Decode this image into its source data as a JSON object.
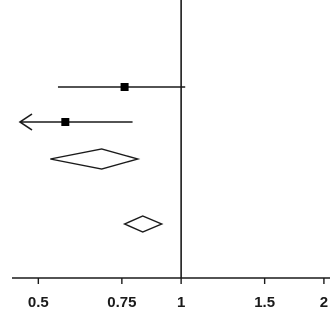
{
  "chart_data": {
    "type": "forest",
    "x_scale": "log",
    "xlim": [
      0.44,
      2.06
    ],
    "reference_line": 1,
    "x_ticks": [
      {
        "value": 0.5,
        "label": "0.5"
      },
      {
        "value": 0.75,
        "label": "0.75"
      },
      {
        "value": 1,
        "label": "1"
      },
      {
        "value": 1.5,
        "label": "1.5"
      },
      {
        "value": 2,
        "label": "2"
      }
    ],
    "studies": [
      {
        "estimate": 0.76,
        "lower": 0.55,
        "upper": 1.02,
        "lower_truncated": false
      },
      {
        "estimate": 0.57,
        "lower": 0.44,
        "upper": 0.79,
        "lower_truncated": true
      }
    ],
    "summaries": [
      {
        "estimate": 0.68,
        "lower": 0.53,
        "upper": 0.81
      },
      {
        "estimate": 0.83,
        "lower": 0.76,
        "upper": 0.91
      }
    ],
    "colors": {
      "line": "#1a1a1a",
      "marker": "#000000",
      "diamond_fill": "#ffffff"
    }
  }
}
